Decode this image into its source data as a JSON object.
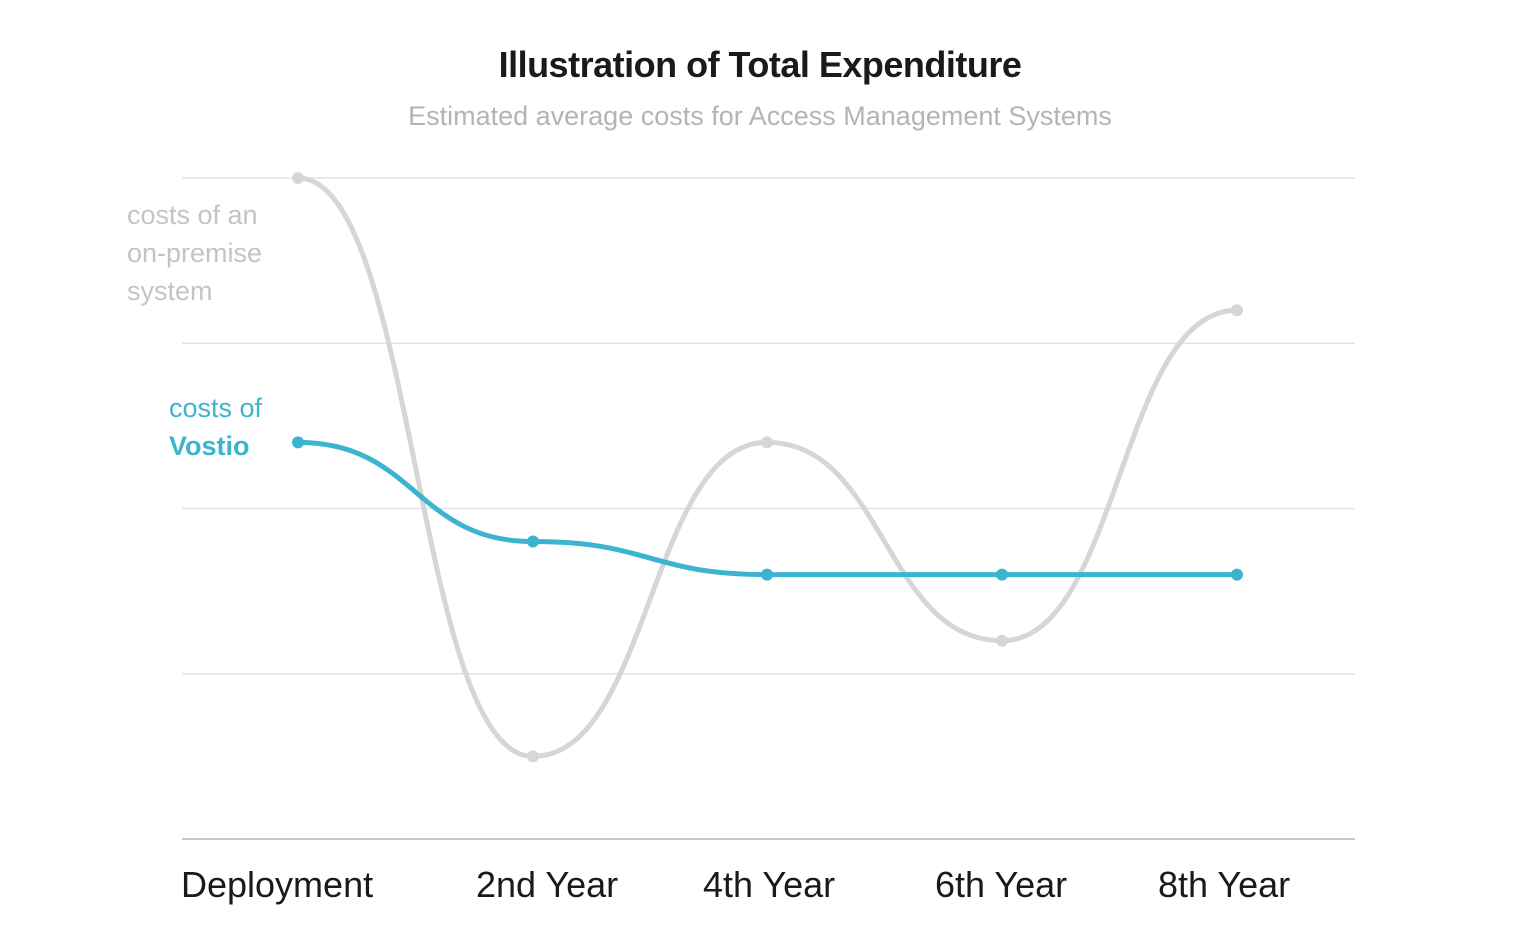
{
  "chart_data": {
    "type": "line",
    "title": "Illustration of Total Expenditure",
    "subtitle": "Estimated average costs for Access Management Systems",
    "categories": [
      "Deployment",
      "2nd Year",
      "4th Year",
      "6th Year",
      "8th Year"
    ],
    "ylim": [
      0,
      4
    ],
    "grid": true,
    "series": [
      {
        "name": "costs of an on-premise system",
        "label_lines": [
          "costs of an",
          "on-premise",
          "system"
        ],
        "color": "#d6d6d6",
        "values": [
          4.0,
          0.5,
          2.4,
          1.2,
          3.2
        ]
      },
      {
        "name": "costs of Vostio",
        "label_lines": [
          "costs of",
          "Vostio"
        ],
        "color": "#3cb4cf",
        "values": [
          2.4,
          1.8,
          1.6,
          1.6,
          1.6
        ]
      }
    ]
  }
}
